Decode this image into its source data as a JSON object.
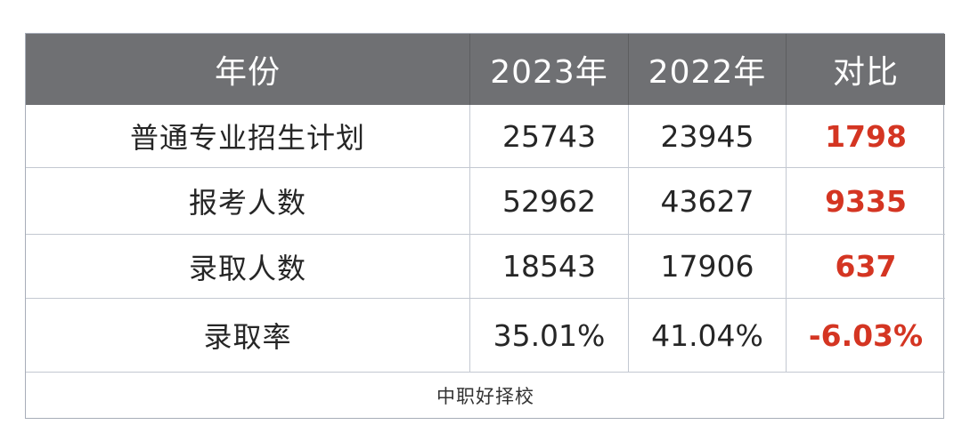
{
  "chart_data": {
    "type": "table",
    "columns": [
      "年份",
      "2023年",
      "2022年",
      "对比"
    ],
    "rows": [
      [
        "普通专业招生计划",
        "25743",
        "23945",
        "1798"
      ],
      [
        "报考人数",
        "52962",
        "43627",
        "9335"
      ],
      [
        "录取人数",
        "18543",
        "17906",
        "637"
      ],
      [
        "录取率",
        "35.01%",
        "41.04%",
        "-6.03%"
      ]
    ],
    "footer": "中职好择校"
  },
  "colors": {
    "header_background": "#6f7073",
    "header_text": "#ffffff",
    "body_text": "#262626",
    "diff_text": "#d43522",
    "grid_line": "#c3c8d1",
    "outer_border": "#a7adb8",
    "page_background": "#ffffff"
  }
}
